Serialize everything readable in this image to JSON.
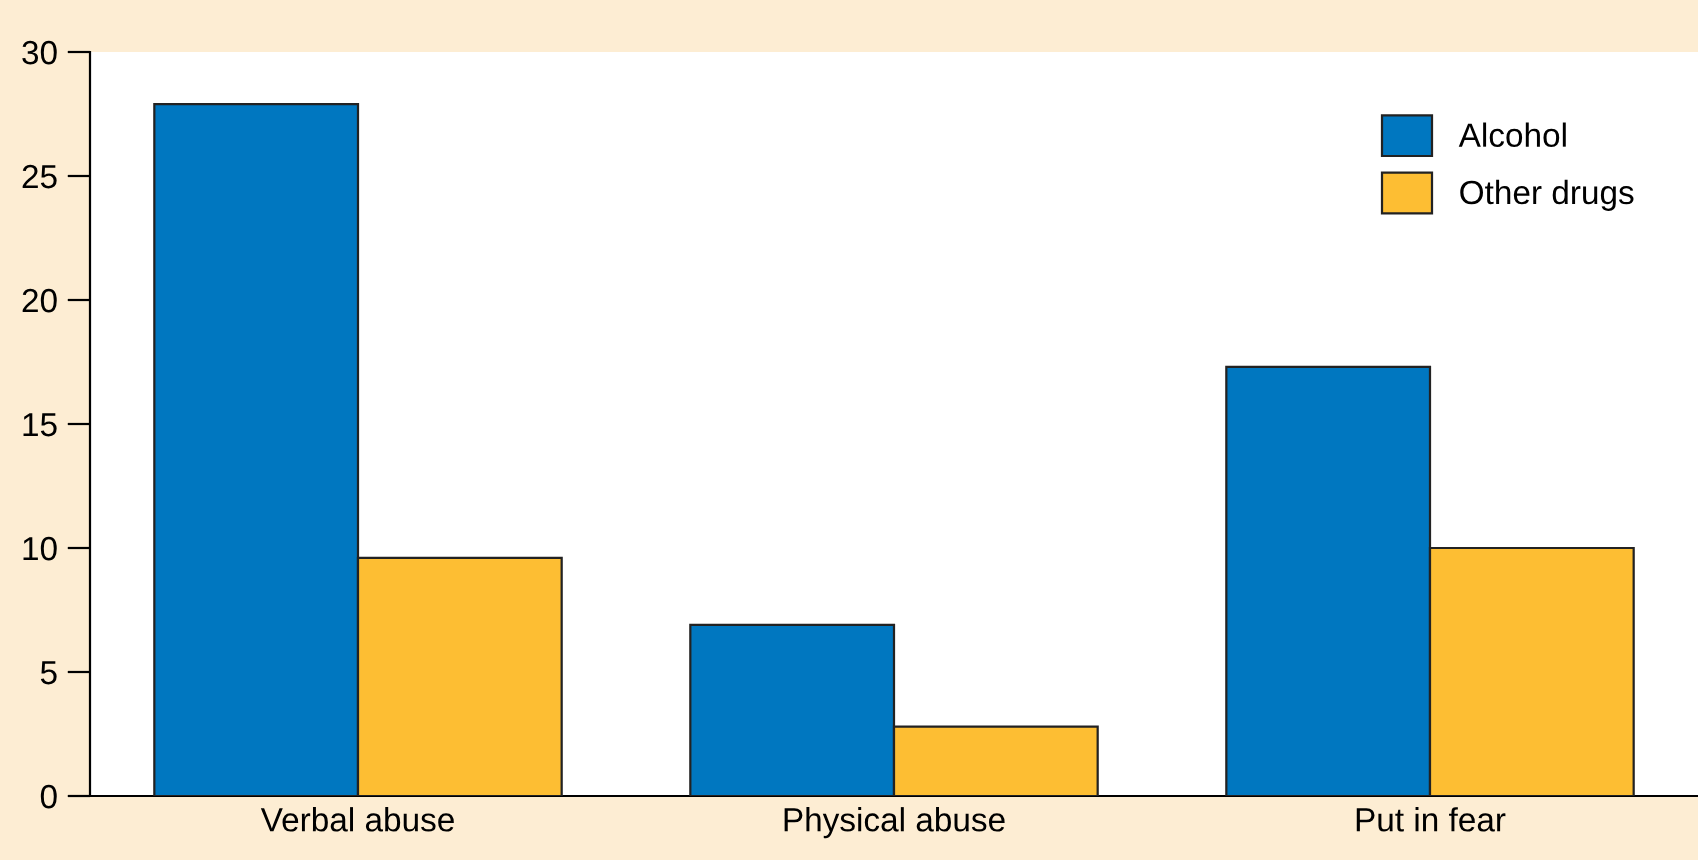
{
  "chart_data": {
    "type": "bar",
    "categories": [
      "Verbal abuse",
      "Physical abuse",
      "Put in fear"
    ],
    "series": [
      {
        "name": "Alcohol",
        "color": "#0077c0",
        "values": [
          27.9,
          6.9,
          17.3
        ]
      },
      {
        "name": "Other drugs",
        "color": "#fdbe33",
        "values": [
          9.6,
          2.8,
          10.0
        ]
      }
    ],
    "ylim": [
      0,
      30
    ],
    "yticks": [
      0,
      5,
      10,
      15,
      20,
      25,
      30
    ],
    "grid": false,
    "legend": "top right"
  }
}
